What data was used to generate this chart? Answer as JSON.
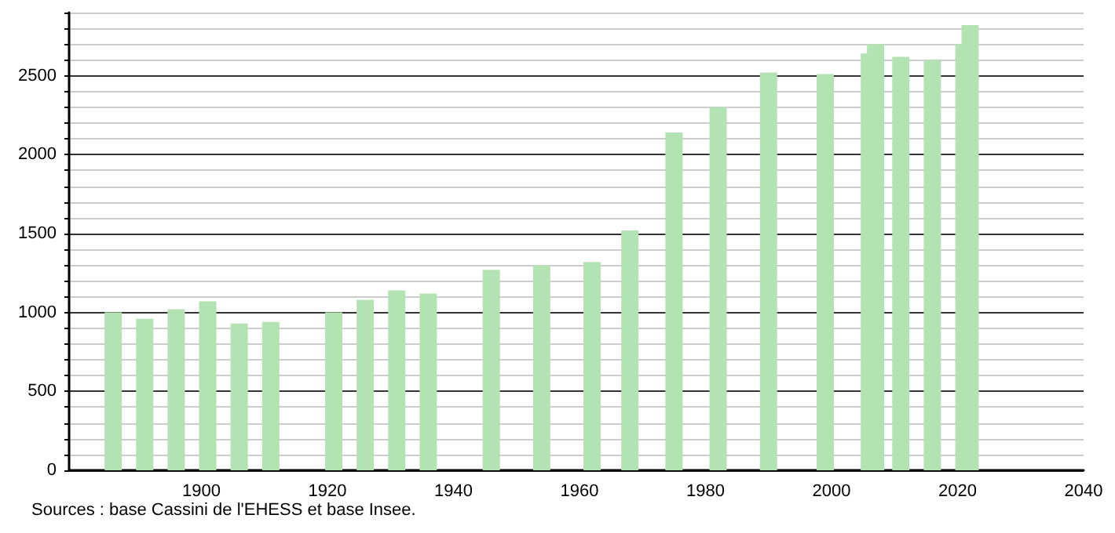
{
  "chart_data": {
    "type": "bar",
    "x": [
      1886,
      1891,
      1896,
      1901,
      1906,
      1911,
      1921,
      1926,
      1931,
      1936,
      1946,
      1954,
      1962,
      1968,
      1975,
      1982,
      1990,
      1999,
      2006,
      2007,
      2011,
      2016,
      2021,
      2022
    ],
    "values": [
      1000,
      960,
      1020,
      1070,
      930,
      940,
      1000,
      1080,
      1140,
      1120,
      1270,
      1300,
      1320,
      1520,
      2140,
      2300,
      2520,
      2510,
      2640,
      2700,
      2620,
      2600,
      2700,
      2820
    ],
    "color": "#b3e3b3",
    "xlim": [
      1879,
      2040
    ],
    "xticks": [
      1900,
      1920,
      1940,
      1960,
      1980,
      2000,
      2020,
      2040
    ],
    "ylim": [
      0,
      2900
    ],
    "yticks": [
      0,
      500,
      1000,
      1500,
      2000,
      2500
    ],
    "grid": "y",
    "annotations": [
      "Sources : base Cassini de l'EHESS et base Insee."
    ]
  }
}
